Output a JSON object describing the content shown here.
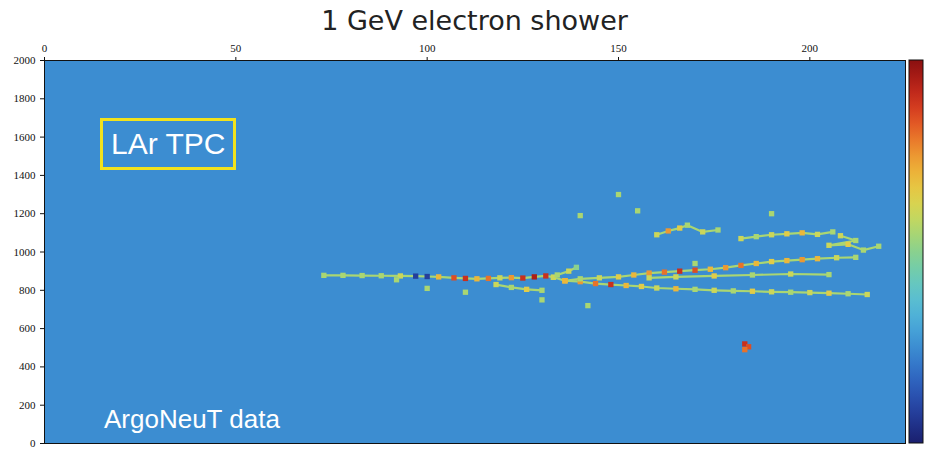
{
  "chart_data": {
    "type": "heatmap",
    "title": "1 GeV electron shower",
    "annotations": [
      "LAr TPC",
      "ArgoNeuT data"
    ],
    "xlim": [
      0,
      225
    ],
    "xticks": [
      0,
      50,
      100,
      150,
      200
    ],
    "ylim": [
      0,
      2000
    ],
    "yticks": [
      0,
      200,
      400,
      600,
      800,
      1000,
      1200,
      1400,
      1600,
      1800,
      2000
    ],
    "zlim": [
      0,
      100
    ],
    "background_value": 25,
    "tracks": [
      {
        "hits": [
          [
            73,
            878,
            55
          ],
          [
            78,
            878,
            55
          ],
          [
            83,
            877,
            55
          ],
          [
            88,
            876,
            55
          ],
          [
            93,
            875,
            60
          ],
          [
            97,
            874,
            8
          ],
          [
            100,
            872,
            8
          ],
          [
            103,
            870,
            70
          ],
          [
            107,
            865,
            85
          ],
          [
            110,
            862,
            90
          ],
          [
            113,
            860,
            70
          ],
          [
            116,
            862,
            80
          ],
          [
            119,
            865,
            60
          ],
          [
            122,
            866,
            75
          ],
          [
            125,
            864,
            90
          ],
          [
            128,
            870,
            95
          ],
          [
            131,
            875,
            90
          ],
          [
            133,
            868,
            60
          ],
          [
            136,
            850,
            70
          ]
        ]
      },
      {
        "hits": [
          [
            118,
            830,
            60
          ],
          [
            122,
            815,
            55
          ],
          [
            126,
            805,
            65
          ],
          [
            130,
            800,
            55
          ]
        ]
      },
      {
        "hits": [
          [
            133,
            868,
            60
          ],
          [
            134,
            880,
            55
          ],
          [
            137,
            900,
            60
          ],
          [
            139,
            920,
            50
          ]
        ]
      },
      {
        "hits": [
          [
            136,
            850,
            70
          ],
          [
            140,
            845,
            75
          ],
          [
            144,
            835,
            80
          ],
          [
            148,
            830,
            90
          ],
          [
            152,
            825,
            70
          ],
          [
            156,
            820,
            65
          ],
          [
            160,
            812,
            60
          ],
          [
            165,
            808,
            70
          ],
          [
            170,
            805,
            55
          ],
          [
            175,
            800,
            60
          ],
          [
            180,
            797,
            55
          ],
          [
            185,
            795,
            65
          ],
          [
            190,
            792,
            60
          ],
          [
            195,
            790,
            55
          ],
          [
            200,
            788,
            60
          ],
          [
            205,
            785,
            65
          ],
          [
            210,
            782,
            55
          ],
          [
            215,
            778,
            60
          ]
        ]
      },
      {
        "hits": [
          [
            136,
            850,
            70
          ],
          [
            140,
            860,
            55
          ],
          [
            145,
            865,
            60
          ],
          [
            150,
            870,
            65
          ],
          [
            154,
            880,
            70
          ],
          [
            158,
            890,
            75
          ],
          [
            162,
            895,
            80
          ],
          [
            166,
            900,
            90
          ],
          [
            170,
            905,
            85
          ],
          [
            174,
            910,
            70
          ],
          [
            178,
            918,
            75
          ],
          [
            182,
            930,
            80
          ],
          [
            186,
            940,
            70
          ],
          [
            190,
            950,
            65
          ],
          [
            194,
            955,
            70
          ],
          [
            198,
            960,
            75
          ],
          [
            202,
            965,
            70
          ],
          [
            207,
            970,
            60
          ],
          [
            212,
            972,
            55
          ]
        ]
      },
      {
        "hits": [
          [
            158,
            865,
            60
          ],
          [
            165,
            870,
            60
          ],
          [
            175,
            875,
            65
          ],
          [
            185,
            880,
            55
          ],
          [
            195,
            885,
            60
          ],
          [
            205,
            882,
            55
          ]
        ]
      },
      {
        "hits": [
          [
            160,
            1090,
            60
          ],
          [
            163,
            1110,
            75
          ],
          [
            166,
            1125,
            65
          ],
          [
            168,
            1140,
            55
          ],
          [
            172,
            1105,
            60
          ],
          [
            176,
            1115,
            55
          ]
        ]
      },
      {
        "hits": [
          [
            182,
            1070,
            60
          ],
          [
            186,
            1080,
            55
          ],
          [
            190,
            1090,
            60
          ],
          [
            194,
            1095,
            65
          ],
          [
            198,
            1100,
            70
          ],
          [
            202,
            1092,
            60
          ],
          [
            206,
            1105,
            55
          ]
        ]
      },
      {
        "hits": [
          [
            208,
            1085,
            60
          ],
          [
            212,
            1060,
            55
          ],
          [
            205,
            1035,
            60
          ],
          [
            210,
            1040,
            65
          ],
          [
            214,
            1010,
            55
          ],
          [
            218,
            1030,
            55
          ]
        ]
      },
      {
        "hits": [
          [
            183,
            520,
            90
          ],
          [
            184,
            505,
            85
          ],
          [
            183,
            490,
            80
          ]
        ]
      }
    ],
    "isolated_hits": [
      [
        150,
        1300,
        55
      ],
      [
        140,
        1190,
        55
      ],
      [
        155,
        1215,
        55
      ],
      [
        190,
        1200,
        55
      ],
      [
        92,
        855,
        55
      ],
      [
        100,
        810,
        55
      ],
      [
        130,
        750,
        55
      ],
      [
        142,
        720,
        55
      ],
      [
        110,
        790,
        55
      ],
      [
        170,
        940,
        55
      ]
    ]
  }
}
